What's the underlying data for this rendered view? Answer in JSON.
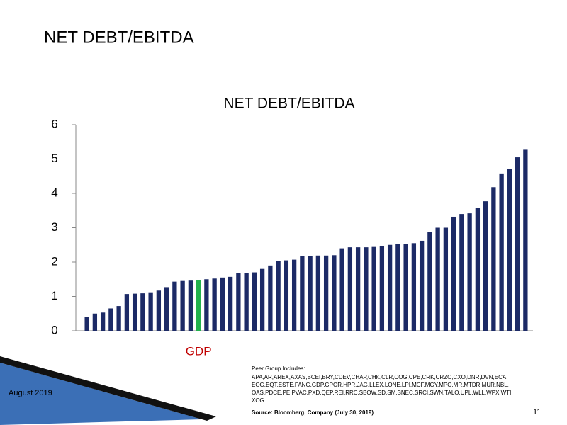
{
  "slide_title": "NET DEBT/EBITDA",
  "chart_data": {
    "type": "bar",
    "title": "NET DEBT/EBITDA",
    "categories": [
      null,
      null,
      null,
      null,
      null,
      null,
      null,
      null,
      null,
      null,
      null,
      null,
      null,
      null,
      "GDP",
      null,
      null,
      null,
      null,
      null,
      null,
      null,
      null,
      null,
      null,
      null,
      null,
      null,
      null,
      null,
      null,
      null,
      null,
      null,
      null,
      null,
      null,
      null,
      null,
      null,
      null,
      null,
      null,
      null,
      null,
      null,
      null,
      null,
      null,
      null,
      null,
      null,
      null,
      null,
      null,
      null
    ],
    "values": [
      0.4,
      0.5,
      0.53,
      0.65,
      0.72,
      1.07,
      1.08,
      1.09,
      1.12,
      1.17,
      1.27,
      1.43,
      1.45,
      1.46,
      1.47,
      1.5,
      1.52,
      1.55,
      1.57,
      1.67,
      1.68,
      1.7,
      1.8,
      1.9,
      2.04,
      2.05,
      2.07,
      2.18,
      2.18,
      2.19,
      2.19,
      2.2,
      2.4,
      2.43,
      2.43,
      2.43,
      2.44,
      2.47,
      2.5,
      2.52,
      2.53,
      2.55,
      2.62,
      2.88,
      3.0,
      3.0,
      3.32,
      3.4,
      3.42,
      3.57,
      3.77,
      4.18,
      4.58,
      4.72,
      5.05,
      5.27
    ],
    "colors": [
      "#1c2a66",
      "#1c2a66",
      "#1c2a66",
      "#1c2a66",
      "#1c2a66",
      "#1c2a66",
      "#1c2a66",
      "#1c2a66",
      "#1c2a66",
      "#1c2a66",
      "#1c2a66",
      "#1c2a66",
      "#1c2a66",
      "#1c2a66",
      "#22b14c",
      "#1c2a66",
      "#1c2a66",
      "#1c2a66",
      "#1c2a66",
      "#1c2a66",
      "#1c2a66",
      "#1c2a66",
      "#1c2a66",
      "#1c2a66",
      "#1c2a66",
      "#1c2a66",
      "#1c2a66",
      "#1c2a66",
      "#1c2a66",
      "#1c2a66",
      "#1c2a66",
      "#1c2a66",
      "#1c2a66",
      "#1c2a66",
      "#1c2a66",
      "#1c2a66",
      "#1c2a66",
      "#1c2a66",
      "#1c2a66",
      "#1c2a66",
      "#1c2a66",
      "#1c2a66",
      "#1c2a66",
      "#1c2a66",
      "#1c2a66",
      "#1c2a66",
      "#1c2a66",
      "#1c2a66",
      "#1c2a66",
      "#1c2a66",
      "#1c2a66",
      "#1c2a66",
      "#1c2a66",
      "#1c2a66",
      "#1c2a66",
      "#1c2a66"
    ],
    "category_label_color": "#c00000",
    "ylim": [
      0,
      6
    ],
    "yticks": [
      0,
      1,
      2,
      3,
      4,
      5,
      6
    ],
    "grid": false
  },
  "notes": {
    "peer_group_heading": "Peer Group Includes:",
    "peer_group_lines": [
      "APA,AR,AREX,AXAS,BCEI,BRY,CDEV,CHAP,CHK,CLR,COG,CPE,CRK,CRZO,CXO,DNR,DVN,ECA,",
      "EOG,EQT,ESTE,FANG,GDP,GPOR,HPR,JAG,LLEX,LONE,LPI,MCF,MGY,MPO,MR,MTDR,MUR,NBL,",
      "OAS,PDCE,PE,PVAC,PXD,QEP,REI,RRC,SBOW,SD,SM,SNEC,SRCI,SWN,TALO,UPL,WLL,WPX,WTI,",
      "XOG"
    ],
    "source": "Source: Bloomberg, Company (July 30, 2019)"
  },
  "footer": {
    "date": "August 2019",
    "page_number": "11"
  }
}
